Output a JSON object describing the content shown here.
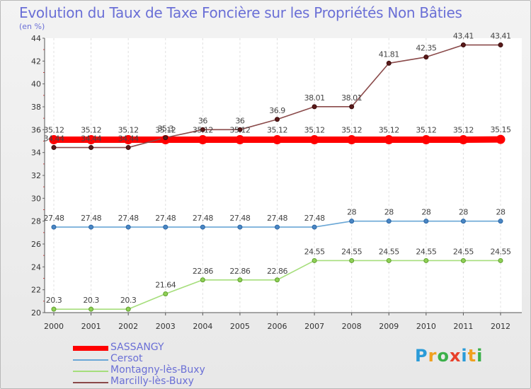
{
  "chart_data": {
    "type": "line",
    "title": "Evolution du Taux de Taxe Foncière sur les Propriétés Non Bâties",
    "subtitle": "(en %)",
    "xlabel": "",
    "ylabel": "",
    "ylim": [
      20,
      44
    ],
    "yticks": [
      20,
      22,
      24,
      26,
      28,
      30,
      32,
      34,
      36,
      38,
      40,
      42,
      44
    ],
    "categories": [
      "2000",
      "2001",
      "2002",
      "2003",
      "2004",
      "2005",
      "2006",
      "2007",
      "2008",
      "2009",
      "2010",
      "2011",
      "2012"
    ],
    "series": [
      {
        "name": "SASSANGY",
        "color": "#ff0000",
        "values": [
          35.12,
          35.12,
          35.12,
          35.12,
          35.12,
          35.12,
          35.12,
          35.12,
          35.12,
          35.12,
          35.12,
          35.12,
          35.15
        ],
        "labels": [
          "35.12",
          "35.12",
          "35.12",
          "35.12",
          "35.12",
          "35.12",
          "35.12",
          "35.12",
          "35.12",
          "35.12",
          "35.12",
          "35.12",
          "35.15"
        ]
      },
      {
        "name": "Cersot",
        "color": "#6aa7d6",
        "values": [
          27.48,
          27.48,
          27.48,
          27.48,
          27.48,
          27.48,
          27.48,
          27.48,
          28,
          28,
          28,
          28,
          28
        ],
        "labels": [
          "27.48",
          "27.48",
          "27.48",
          "27.48",
          "27.48",
          "27.48",
          "27.48",
          "27.48",
          "28",
          "28",
          "28",
          "28",
          "28"
        ]
      },
      {
        "name": "Montagny-lès-Buxy",
        "color": "#a6de7c",
        "values": [
          20.3,
          20.3,
          20.3,
          21.64,
          22.86,
          22.86,
          22.86,
          24.55,
          24.55,
          24.55,
          24.55,
          24.55,
          24.55
        ],
        "labels": [
          "20.3",
          "20.3",
          "20.3",
          "21.64",
          "22.86",
          "22.86",
          "22.86",
          "24.55",
          "24.55",
          "24.55",
          "24.55",
          "24.55",
          "24.55"
        ]
      },
      {
        "name": "Marcilly-lès-Buxy",
        "color": "#8a4a4a",
        "values": [
          34.44,
          34.44,
          34.44,
          35.3,
          36,
          36,
          36.9,
          38.01,
          38.01,
          41.81,
          42.35,
          43.41,
          43.41
        ],
        "labels": [
          "34.44",
          "34.44",
          "34.44",
          "35.3",
          "36",
          "36",
          "36.9",
          "38.01",
          "38.01",
          "41.81",
          "42.35",
          "43.41",
          "43.41"
        ]
      }
    ]
  },
  "branding": {
    "logo_letters": [
      "P",
      "r",
      "o",
      "x",
      "i",
      "t",
      "i"
    ],
    "logo_colors": [
      "#2a9bd8",
      "#f0a020",
      "#3bb04a",
      "#e8402a",
      "#2a9bd8",
      "#f0a020",
      "#3bb04a"
    ]
  }
}
